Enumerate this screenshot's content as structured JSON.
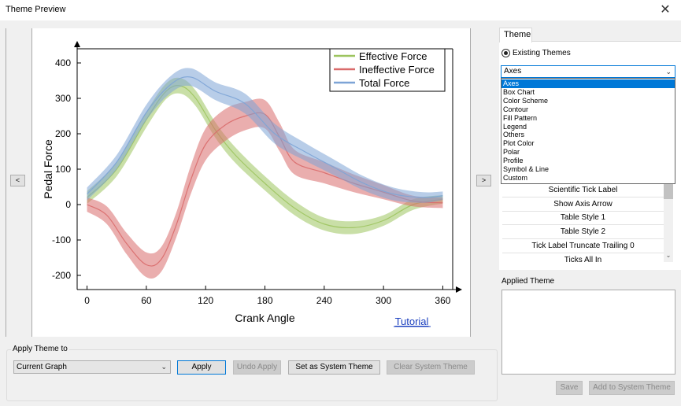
{
  "window": {
    "title": "Theme Preview",
    "close_glyph": "✕"
  },
  "preview": {
    "prev_label": "<",
    "next_label": ">",
    "tutorial_link": "Tutorial"
  },
  "chart_data": {
    "type": "line",
    "xlabel": "Crank Angle",
    "ylabel": "Pedal Force",
    "xlim": [
      -10,
      370
    ],
    "ylim": [
      -240,
      440
    ],
    "x_ticks": [
      0,
      60,
      120,
      180,
      240,
      300,
      360
    ],
    "y_ticks": [
      -200,
      -100,
      0,
      100,
      200,
      300,
      400
    ],
    "legend_position": "top-right",
    "grid": false,
    "series": [
      {
        "name": "Effective Force",
        "color": "#9dc45f",
        "x": [
          0,
          30,
          60,
          80,
          95,
          110,
          130,
          150,
          180,
          210,
          240,
          270,
          300,
          330,
          360
        ],
        "y": [
          20,
          100,
          240,
          320,
          335,
          300,
          210,
          140,
          60,
          -10,
          -55,
          -65,
          -45,
          0,
          15
        ],
        "spread": [
          18,
          20,
          22,
          22,
          22,
          22,
          22,
          22,
          20,
          20,
          18,
          18,
          15,
          15,
          12
        ]
      },
      {
        "name": "Ineffective Force",
        "color": "#d96b6b",
        "x": [
          0,
          20,
          40,
          60,
          75,
          90,
          105,
          120,
          140,
          160,
          180,
          195,
          210,
          240,
          270,
          300,
          330,
          360
        ],
        "y": [
          0,
          -30,
          -110,
          -170,
          -155,
          -60,
          70,
          170,
          225,
          250,
          255,
          190,
          120,
          90,
          60,
          35,
          10,
          5
        ],
        "spread": [
          20,
          25,
          30,
          35,
          35,
          35,
          40,
          45,
          45,
          40,
          40,
          40,
          35,
          30,
          25,
          20,
          15,
          15
        ]
      },
      {
        "name": "Total Force",
        "color": "#7da4d6",
        "x": [
          0,
          30,
          60,
          85,
          105,
          130,
          160,
          190,
          220,
          250,
          280,
          310,
          340,
          360
        ],
        "y": [
          30,
          120,
          260,
          340,
          360,
          320,
          285,
          200,
          150,
          105,
          60,
          30,
          20,
          25
        ],
        "spread": [
          18,
          20,
          22,
          24,
          25,
          25,
          28,
          28,
          25,
          22,
          20,
          18,
          15,
          12
        ]
      }
    ]
  },
  "apply_section": {
    "group_label": "Apply Theme to",
    "target_value": "Current Graph",
    "apply": "Apply",
    "undo_apply": "Undo Apply",
    "set_system": "Set as System Theme",
    "clear_system": "Clear System Theme"
  },
  "theme_panel": {
    "tab": "Theme",
    "radio_label": "Existing Themes",
    "selected": "Axes",
    "dropdown_options": [
      "Axes",
      "Box Chart",
      "Color Scheme",
      "Contour",
      "Fill Pattern",
      "Legend",
      "Others",
      "Plot Color",
      "Polar",
      "Profile",
      "Symbol & Line",
      "Custom"
    ],
    "list_items": [
      "Scientific Tick Label",
      "Show Axis Arrow",
      "Table Style 1",
      "Table Style 2",
      "Tick Label Truncate Trailing 0",
      "Ticks All In"
    ],
    "applied_label": "Applied Theme",
    "save": "Save",
    "add_system": "Add to System Theme"
  },
  "icons": {
    "chevron": "chevron-down-icon",
    "close": "close-icon"
  }
}
